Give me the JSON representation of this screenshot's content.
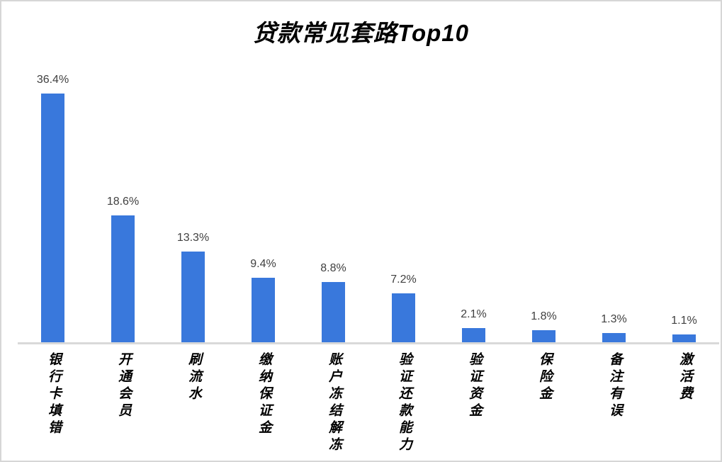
{
  "title": "贷款常见套路Top10",
  "chart_data": {
    "type": "bar",
    "title": "贷款常见套路Top10",
    "categories": [
      "银行卡填错",
      "开通会员",
      "刷流水",
      "缴纳保证金",
      "账户冻结解冻",
      "验证还款能力",
      "验证资金",
      "保险金",
      "备注有误",
      "激活费"
    ],
    "values": [
      36.4,
      18.6,
      13.3,
      9.4,
      8.8,
      7.2,
      2.1,
      1.8,
      1.3,
      1.1
    ],
    "value_labels": [
      "36.4%",
      "18.6%",
      "13.3%",
      "9.4%",
      "8.8%",
      "7.2%",
      "2.1%",
      "1.8%",
      "1.3%",
      "1.1%"
    ],
    "xlabel": "",
    "ylabel": "",
    "ylim": [
      0,
      40
    ],
    "grid": false,
    "legend_position": "none",
    "bar_color": "#3978dc",
    "axis_line_color": "#d9d9d9",
    "value_label_color": "#404040",
    "category_label_color": "#000000"
  }
}
